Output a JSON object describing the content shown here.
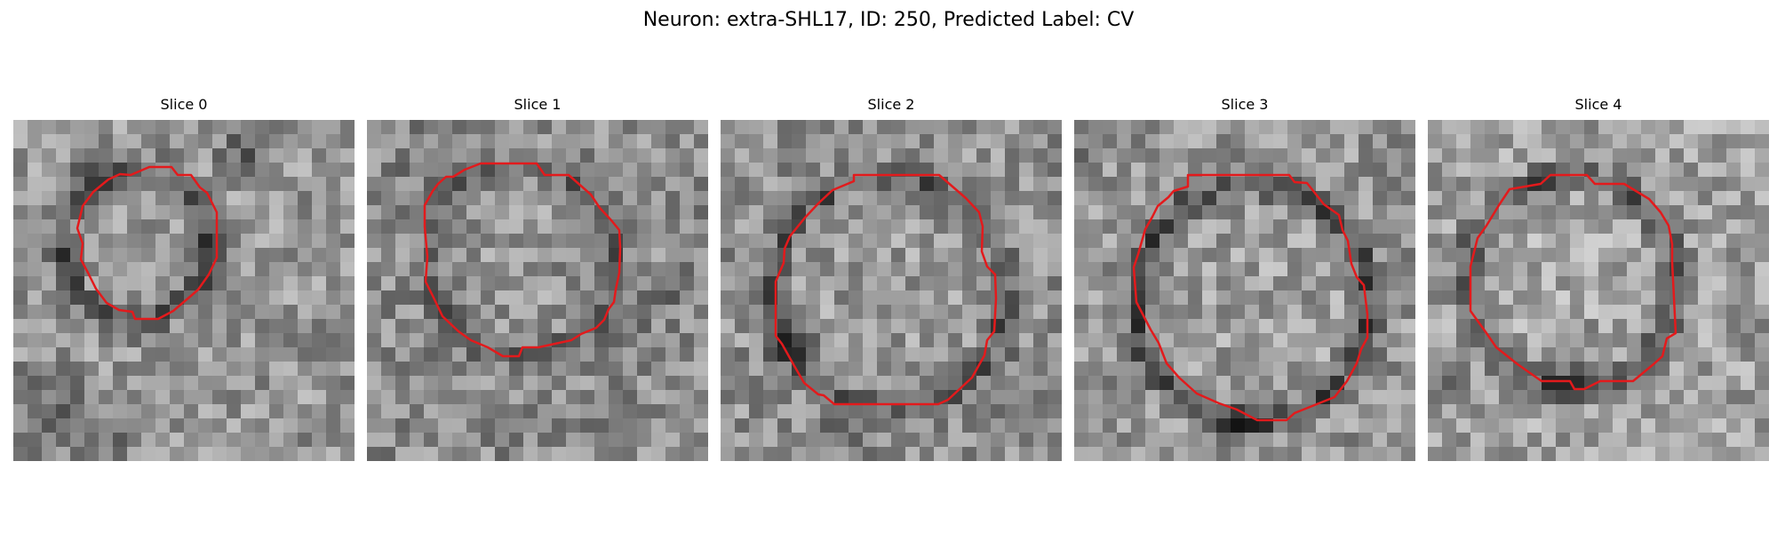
{
  "figure": {
    "title": "Neuron: extra-SHL17, ID: 250, Predicted Label: CV"
  },
  "panels": [
    {
      "title": "Slice 0"
    },
    {
      "title": "Slice 1"
    },
    {
      "title": "Slice 2"
    },
    {
      "title": "Slice 3"
    },
    {
      "title": "Slice 4"
    }
  ],
  "colors": {
    "background": "#ffffff",
    "contour": "#e31a1c",
    "colormap": "gray"
  }
}
